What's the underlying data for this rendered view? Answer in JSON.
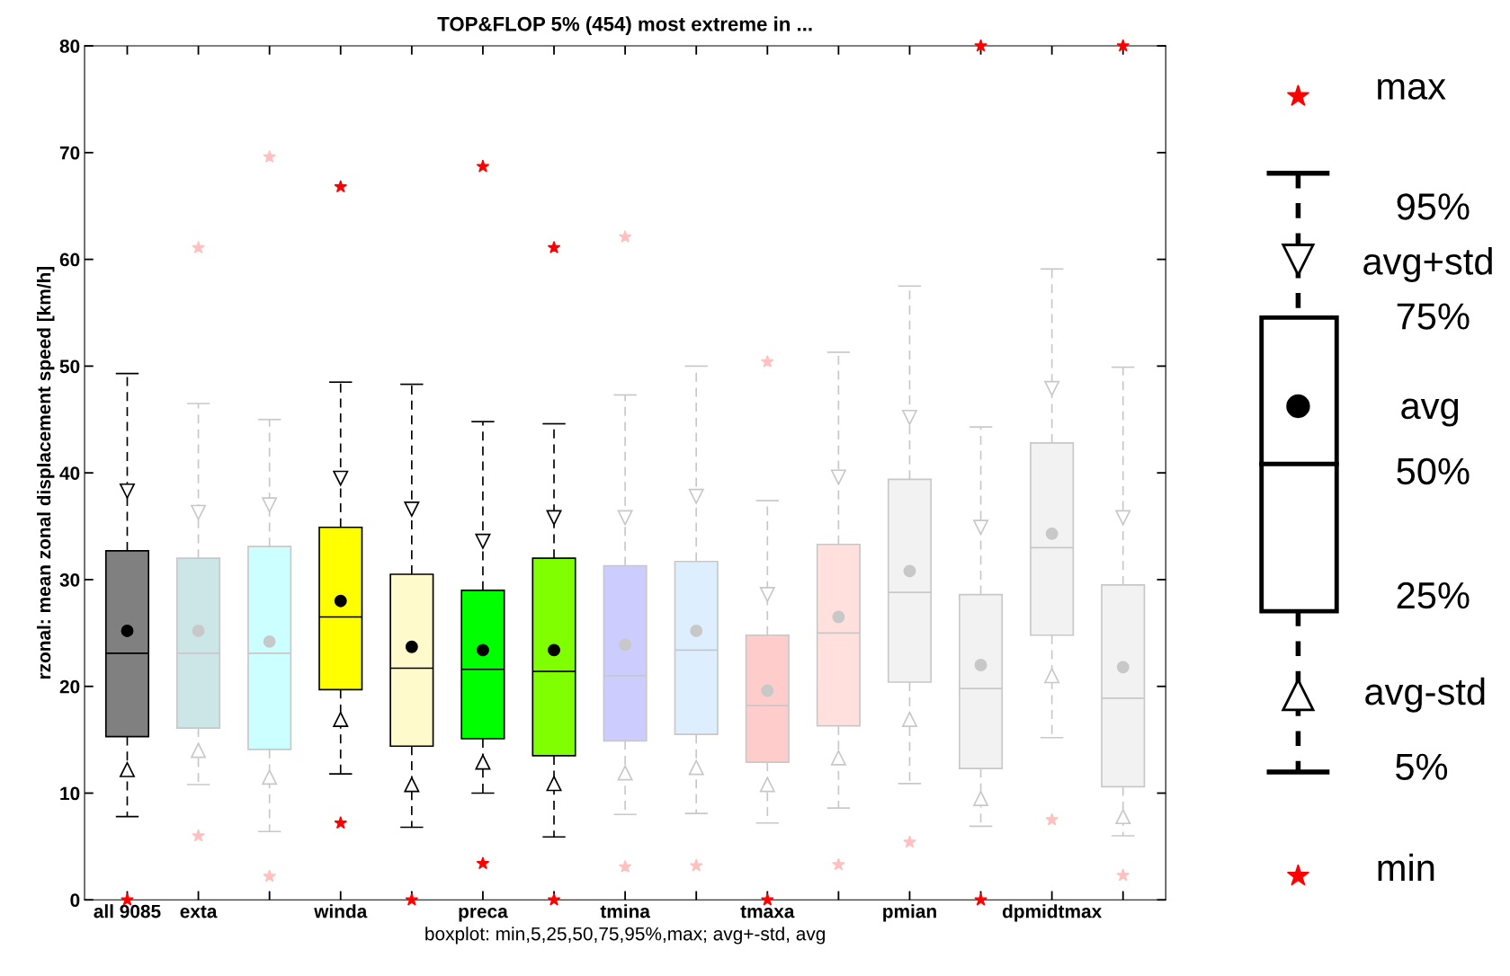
{
  "chart_data": {
    "type": "box",
    "title": "TOP&FLOP 5% (454) most extreme in ...",
    "xlabel": "boxplot: min,5,25,50,75,95%,max; avg+-std, avg",
    "ylabel": "rzonal: mean zonal displacement speed [km/h]",
    "categories": [
      "all 9085",
      "exta",
      null,
      "winda",
      null,
      "preca",
      null,
      "tmina",
      null,
      "tmaxa",
      null,
      "pmian",
      null,
      "dpmidtmax",
      null
    ],
    "ylim": [
      0,
      80
    ],
    "yticks": [
      0,
      10,
      20,
      30,
      40,
      50,
      60,
      70,
      80
    ],
    "grid": false,
    "legend": false,
    "series": [
      {
        "color": "#000000",
        "colors": [
          "#808080",
          null,
          null,
          "#ffff00",
          "#fffacc",
          "#00ff00",
          "#80ff00",
          null,
          null,
          null,
          null,
          null,
          null,
          null,
          null
        ],
        "boxes": [
          {
            "low": 7.8,
            "q1": 15.3,
            "median": 23.1,
            "q3": 32.7,
            "high": 49.3,
            "mean": 25.2
          },
          null,
          null,
          {
            "low": 11.8,
            "q1": 19.7,
            "median": 26.5,
            "q3": 34.9,
            "high": 48.5,
            "mean": 28.0
          },
          {
            "low": 6.8,
            "q1": 14.4,
            "median": 21.7,
            "q3": 30.5,
            "high": 48.3,
            "mean": 23.7
          },
          {
            "low": 10.0,
            "q1": 15.1,
            "median": 21.6,
            "q3": 29.0,
            "high": 44.8,
            "mean": 23.4
          },
          {
            "low": 5.9,
            "q1": 13.5,
            "median": 21.4,
            "q3": 32.0,
            "high": 44.6,
            "mean": 23.4
          },
          null,
          null,
          null,
          null,
          null,
          null,
          null,
          null
        ]
      },
      {
        "color": "#c8c8c8",
        "colors": [
          null,
          "#cce6e8",
          "#ccffff",
          null,
          null,
          null,
          null,
          "#ccccff",
          "#ddeeff",
          "#ffcccc",
          "#ffe0dc",
          "#f2f2f2",
          "#f2f2f2",
          "#f2f2f2",
          "#f2f2f2"
        ],
        "boxes": [
          null,
          {
            "low": 10.8,
            "q1": 16.1,
            "median": 23.1,
            "q3": 32.0,
            "high": 46.5,
            "mean": 25.2
          },
          {
            "low": 6.4,
            "q1": 14.1,
            "median": 23.1,
            "q3": 33.1,
            "high": 45.0,
            "mean": 24.2
          },
          null,
          null,
          null,
          null,
          {
            "low": 8.0,
            "q1": 14.9,
            "median": 21.0,
            "q3": 31.3,
            "high": 47.3,
            "mean": 23.9
          },
          {
            "low": 8.1,
            "q1": 15.5,
            "median": 23.4,
            "q3": 31.7,
            "high": 50.0,
            "mean": 25.2
          },
          {
            "low": 7.2,
            "q1": 12.9,
            "median": 18.2,
            "q3": 24.8,
            "high": 37.4,
            "mean": 19.6
          },
          {
            "low": 8.6,
            "q1": 16.3,
            "median": 25.0,
            "q3": 33.3,
            "high": 51.3,
            "mean": 26.5
          },
          {
            "low": 10.9,
            "q1": 20.4,
            "median": 28.8,
            "q3": 39.4,
            "high": 57.5,
            "mean": 30.8
          },
          {
            "low": 6.9,
            "q1": 12.3,
            "median": 19.8,
            "q3": 28.6,
            "high": 44.3,
            "mean": 22.0
          },
          {
            "low": 15.2,
            "q1": 24.8,
            "median": 33.0,
            "q3": 42.8,
            "high": 59.1,
            "mean": 34.3
          },
          {
            "low": 6.0,
            "q1": 10.6,
            "median": 18.9,
            "q3": 29.5,
            "high": 49.9,
            "mean": 21.8
          }
        ]
      },
      {
        "type": "scatter",
        "marker": "triangle down",
        "values": [
          38.3,
          36.3,
          37.0,
          39.5,
          36.6,
          33.6,
          35.8,
          35.8,
          37.8,
          28.6,
          39.6,
          45.2,
          34.9,
          47.9,
          35.8
        ],
        "colors": [
          "#000000",
          "#c8c8c8",
          "#c8c8c8",
          "#000000",
          "#000000",
          "#000000",
          "#000000",
          "#c8c8c8",
          "#c8c8c8",
          "#c8c8c8",
          "#c8c8c8",
          "#c8c8c8",
          "#c8c8c8",
          "#c8c8c8",
          "#c8c8c8"
        ]
      },
      {
        "type": "scatter",
        "marker": "triangle",
        "values": [
          12.2,
          14.0,
          11.5,
          16.9,
          10.8,
          12.9,
          10.9,
          11.9,
          12.4,
          10.8,
          13.3,
          16.9,
          9.5,
          21.0,
          7.8
        ],
        "colors": [
          "#000000",
          "#c8c8c8",
          "#c8c8c8",
          "#000000",
          "#000000",
          "#000000",
          "#000000",
          "#c8c8c8",
          "#c8c8c8",
          "#c8c8c8",
          "#c8c8c8",
          "#c8c8c8",
          "#c8c8c8",
          "#c8c8c8",
          "#c8c8c8"
        ]
      },
      {
        "type": "scatter",
        "marker": "star",
        "values": [
          null,
          61.1,
          69.6,
          66.8,
          null,
          68.7,
          61.1,
          62.1,
          null,
          50.4,
          null,
          null,
          80,
          null,
          80
        ],
        "colors": [
          "#ff0000",
          "#ffc0c0",
          "#ffc0c0",
          "#ff0000",
          "#ff0000",
          "#ff0000",
          "#ff0000",
          "#ffc0c0",
          "#ffc0c0",
          "#ffc0c0",
          "#ffc0c0",
          "#ffc0c0",
          "#ff0000",
          "#ffc0c0",
          "#ff0000"
        ]
      },
      {
        "type": "scatter",
        "marker": "star",
        "values": [
          0,
          6.0,
          2.2,
          7.2,
          0,
          3.4,
          0,
          3.1,
          3.2,
          0,
          3.3,
          5.4,
          0,
          7.5,
          2.3
        ],
        "colors": [
          "#ff0000",
          "#ffc0c0",
          "#ffc0c0",
          "#ff0000",
          "#ff0000",
          "#ff0000",
          "#ff0000",
          "#ffc0c0",
          "#ffc0c0",
          "#ff0000",
          "#ffc0c0",
          "#ffc0c0",
          "#ff0000",
          "#ffc0c0",
          "#ffc0c0"
        ]
      }
    ],
    "annotations": [
      "max",
      "95%",
      "avg+std",
      "75%",
      "avg",
      "50%",
      "25%",
      "avg-std",
      "5%",
      "min"
    ]
  }
}
